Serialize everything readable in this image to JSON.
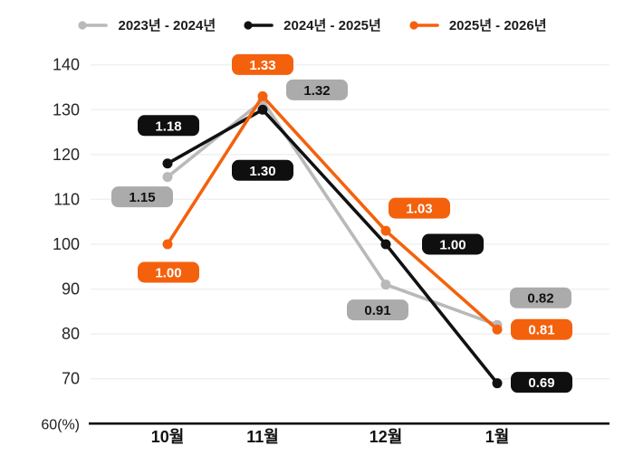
{
  "chart_data": {
    "type": "line",
    "title": "",
    "categories": [
      "10월",
      "11월",
      "12월",
      "1월"
    ],
    "y_axis": {
      "ticks": [
        140,
        130,
        120,
        110,
        100,
        90,
        80,
        70
      ],
      "origin_label": "60(%)",
      "min": 60,
      "max": 140,
      "unit": "%"
    },
    "grid": true,
    "grid_color": "#f0f0f0",
    "axis_color": "#000000",
    "legend_position": "top",
    "series": [
      {
        "name": "2023년 - 2024년",
        "color": "#b9b9b9",
        "label_bg": "#ababab",
        "label_color": "#111111",
        "values": [
          115,
          132,
          91,
          82
        ],
        "labels": [
          "1.15",
          "1.32",
          "0.91",
          "0.82"
        ]
      },
      {
        "name": "2024년 - 2025년",
        "color": "#111111",
        "label_bg": "#0f0f0f",
        "label_color": "#ffffff",
        "values": [
          118,
          130,
          100,
          69
        ],
        "labels": [
          "1.18",
          "1.30",
          "1.00",
          "0.69"
        ]
      },
      {
        "name": "2025년 - 2026년",
        "color": "#f4610d",
        "label_bg": "#f4610d",
        "label_color": "#ffffff",
        "values": [
          100,
          133,
          103,
          81
        ],
        "labels": [
          "1.00",
          "1.33",
          "1.03",
          "0.81"
        ]
      }
    ]
  }
}
